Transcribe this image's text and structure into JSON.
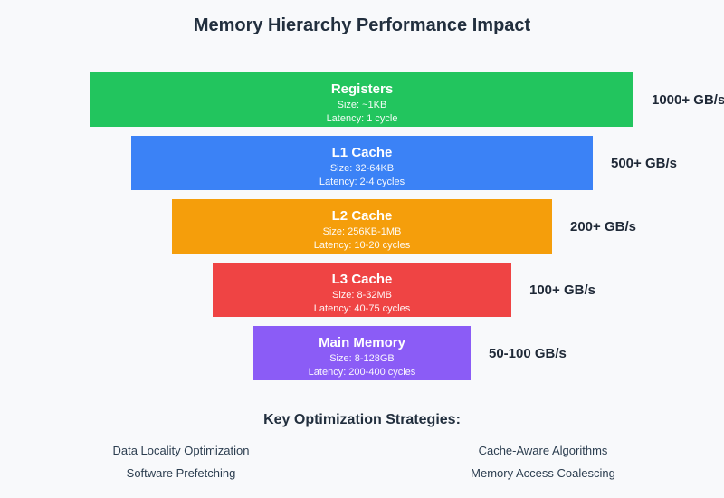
{
  "title": "Memory Hierarchy Performance Impact",
  "colors": {
    "background": "#f8f9fb",
    "heading_text": "#222f3e",
    "bandwidth_text": "#1f2937",
    "bar_text": "#ffffff",
    "registers": "#22c55e",
    "l1_cache": "#3b82f6",
    "l2_cache": "#f59e0b",
    "l3_cache": "#ef4444",
    "main_memory": "#8b5cf6"
  },
  "levels": [
    {
      "name": "Registers",
      "size": "Size: ~1KB",
      "latency": "Latency: 1 cycle",
      "bandwidth": "1000+ GB/s",
      "color": "#22c55e"
    },
    {
      "name": "L1 Cache",
      "size": "Size: 32-64KB",
      "latency": "Latency: 2-4 cycles",
      "bandwidth": "500+ GB/s",
      "color": "#3b82f6"
    },
    {
      "name": "L2 Cache",
      "size": "Size: 256KB-1MB",
      "latency": "Latency: 10-20 cycles",
      "bandwidth": "200+ GB/s",
      "color": "#f59e0b"
    },
    {
      "name": "L3 Cache",
      "size": "Size: 8-32MB",
      "latency": "Latency: 40-75 cycles",
      "bandwidth": "100+ GB/s",
      "color": "#ef4444"
    },
    {
      "name": "Main Memory",
      "size": "Size: 8-128GB",
      "latency": "Latency: 200-400 cycles",
      "bandwidth": "50-100 GB/s",
      "color": "#8b5cf6"
    }
  ],
  "strategies_heading": "Key Optimization Strategies:",
  "strategies": [
    "Data Locality Optimization",
    "Cache-Aware Algorithms",
    "Software Prefetching",
    "Memory Access Coalescing"
  ]
}
